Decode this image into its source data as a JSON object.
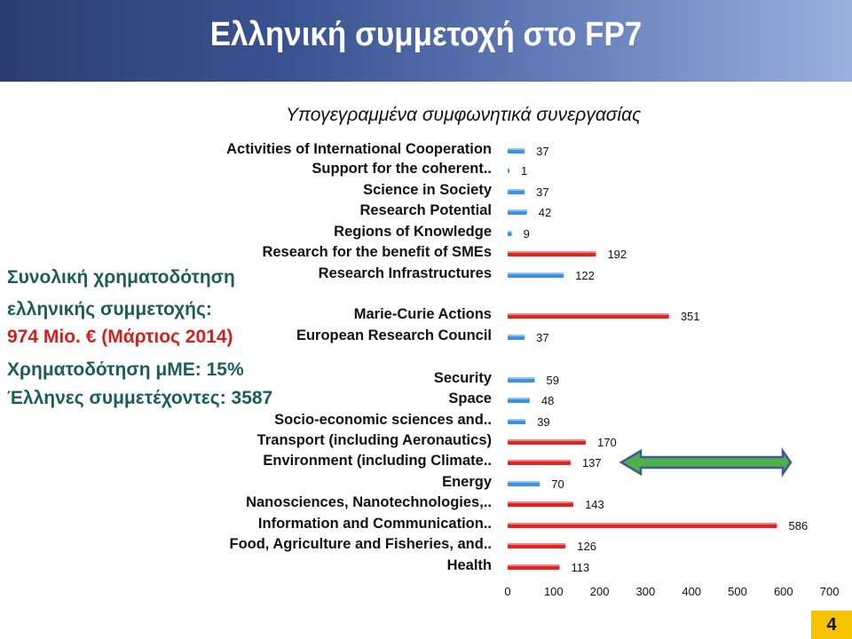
{
  "header": {
    "title": "Ελληνική συμμετοχή στο FP7"
  },
  "chart_data": {
    "type": "bar",
    "orientation": "horizontal",
    "title": "Υπογεγραμμένα συμφωνητικά συνεργασίας",
    "categories": [
      "Activities of International Cooperation",
      "Support for the coherent..",
      "Science in Society",
      "Research Potential",
      "Regions of Knowledge",
      "Research for the benefit of SMEs",
      "Research Infrastructures",
      "Marie-Curie Actions",
      "European Research Council",
      "Security",
      "Space",
      "Socio-economic sciences and..",
      "Transport (including Aeronautics)",
      "Environment (including Climate..",
      "Energy",
      "Nanosciences, Nanotechnologies,..",
      "Information and Communication..",
      "Food, Agriculture and Fisheries, and..",
      "Health"
    ],
    "values": [
      37,
      1,
      37,
      42,
      9,
      192,
      122,
      351,
      37,
      59,
      48,
      39,
      170,
      137,
      70,
      143,
      586,
      126,
      113
    ],
    "bar_colors": [
      "#3c93dd",
      "#3c93dd",
      "#3c93dd",
      "#3c93dd",
      "#3c93dd",
      "#e02424",
      "#3c93dd",
      "#e02424",
      "#3c93dd",
      "#3c93dd",
      "#3c93dd",
      "#3c93dd",
      "#e02424",
      "#e02424",
      "#3c93dd",
      "#e02424",
      "#e02424",
      "#e02424",
      "#e02424"
    ],
    "xlim": [
      0,
      700
    ],
    "x_ticks": [
      0,
      100,
      200,
      300,
      400,
      500,
      600,
      700
    ],
    "grid": false,
    "highlight_arrow_target": "Environment (including Climate.."
  },
  "side_info": {
    "line1": "Συνολική χρηματοδότηση",
    "line2": "ελληνικής συμμετοχής:",
    "line3": "974 Mio. € (Μάρτιος 2014)",
    "line4": "Χρηματοδότηση μΜΕ: 15%",
    "line5": "Έλληνες συμμετέχοντες: 3587"
  },
  "footer": {
    "page_number": "4"
  },
  "colors": {
    "accent_green": "#1b5e57",
    "accent_red": "#d21f1f",
    "blue_bar": "#3c93dd",
    "red_bar": "#e02424",
    "arrow": "#4fb04a",
    "page_badge": "#f5c400"
  }
}
